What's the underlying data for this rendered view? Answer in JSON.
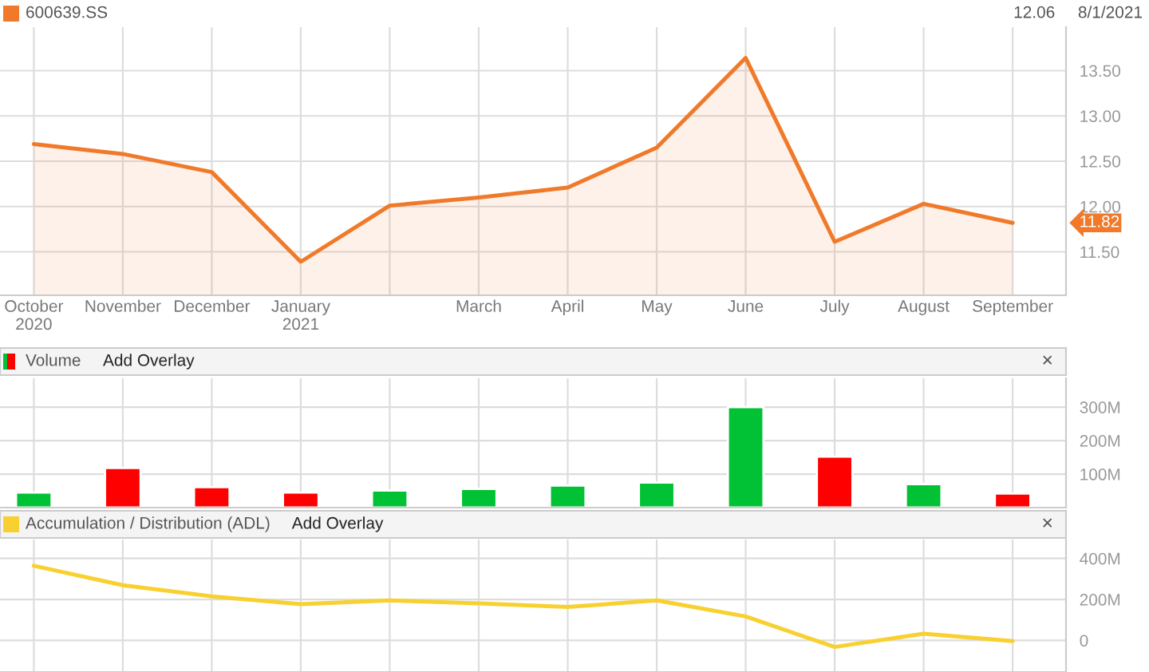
{
  "chart_data": [
    {
      "type": "area",
      "title": "600639.SS",
      "categories": [
        "October\n2020",
        "November",
        "December",
        "January\n2021",
        null,
        "March",
        "April",
        "May",
        "June",
        "July",
        "August",
        "September"
      ],
      "series": [
        {
          "color": "#f07a2a",
          "values": [
            12.69,
            12.58,
            12.38,
            11.39,
            12.01,
            12.1,
            12.21,
            12.65,
            13.64,
            11.61,
            12.03,
            11.82
          ]
        }
      ],
      "ylim": [
        11.02,
        13.98
      ],
      "yticks": [
        {
          "value": 11.5,
          "label": "11.50"
        },
        {
          "value": 12.0,
          "label": "12.00"
        },
        {
          "value": 12.5,
          "label": "12.50"
        },
        {
          "value": 13.0,
          "label": "13.00"
        },
        {
          "value": 13.5,
          "label": "13.50"
        }
      ],
      "grid": true,
      "annotations": [
        "12.06",
        "8/1/2021",
        "11.82"
      ]
    },
    {
      "type": "bar",
      "title": "Volume",
      "categories": [
        null,
        null,
        null,
        null,
        null,
        null,
        null,
        null,
        null,
        null,
        null,
        null
      ],
      "series": [
        {
          "colors": [
            "#00c234",
            "#ff0000",
            "#ff0000",
            "#ff0000",
            "#00c234",
            "#00c234",
            "#00c234",
            "#00c234",
            "#00c234",
            "#ff0000",
            "#00c234",
            "#ff0000"
          ],
          "values": [
            45,
            118,
            61,
            45,
            51,
            56,
            66,
            75,
            300,
            152,
            70,
            42
          ]
        }
      ],
      "ylim": [
        0,
        386
      ],
      "yticks": [
        {
          "value": 100,
          "label": "100M"
        },
        {
          "value": 200,
          "label": "200M"
        },
        {
          "value": 300,
          "label": "300M"
        }
      ],
      "grid": true,
      "tick_labels": "y",
      "annotations": [
        "Add Overlay",
        "×"
      ]
    },
    {
      "type": "line",
      "title": "Accumulation / Distribution (ADL)",
      "categories": [
        null,
        null,
        null,
        null,
        null,
        null,
        null,
        null,
        null,
        null,
        null,
        null
      ],
      "series": [
        {
          "color": "#f8d030",
          "values": [
            364,
            269,
            215,
            177,
            195,
            181,
            163,
            195,
            117,
            -32,
            33,
            -3
          ]
        }
      ],
      "ylim": [
        -154,
        492
      ],
      "yticks": [
        0,
        {
          "value": 200,
          "label": "200M"
        },
        {
          "value": 400,
          "label": "400M"
        }
      ],
      "grid": true,
      "tick_labels": "y",
      "annotations": [
        "Add Overlay",
        "×"
      ]
    }
  ]
}
